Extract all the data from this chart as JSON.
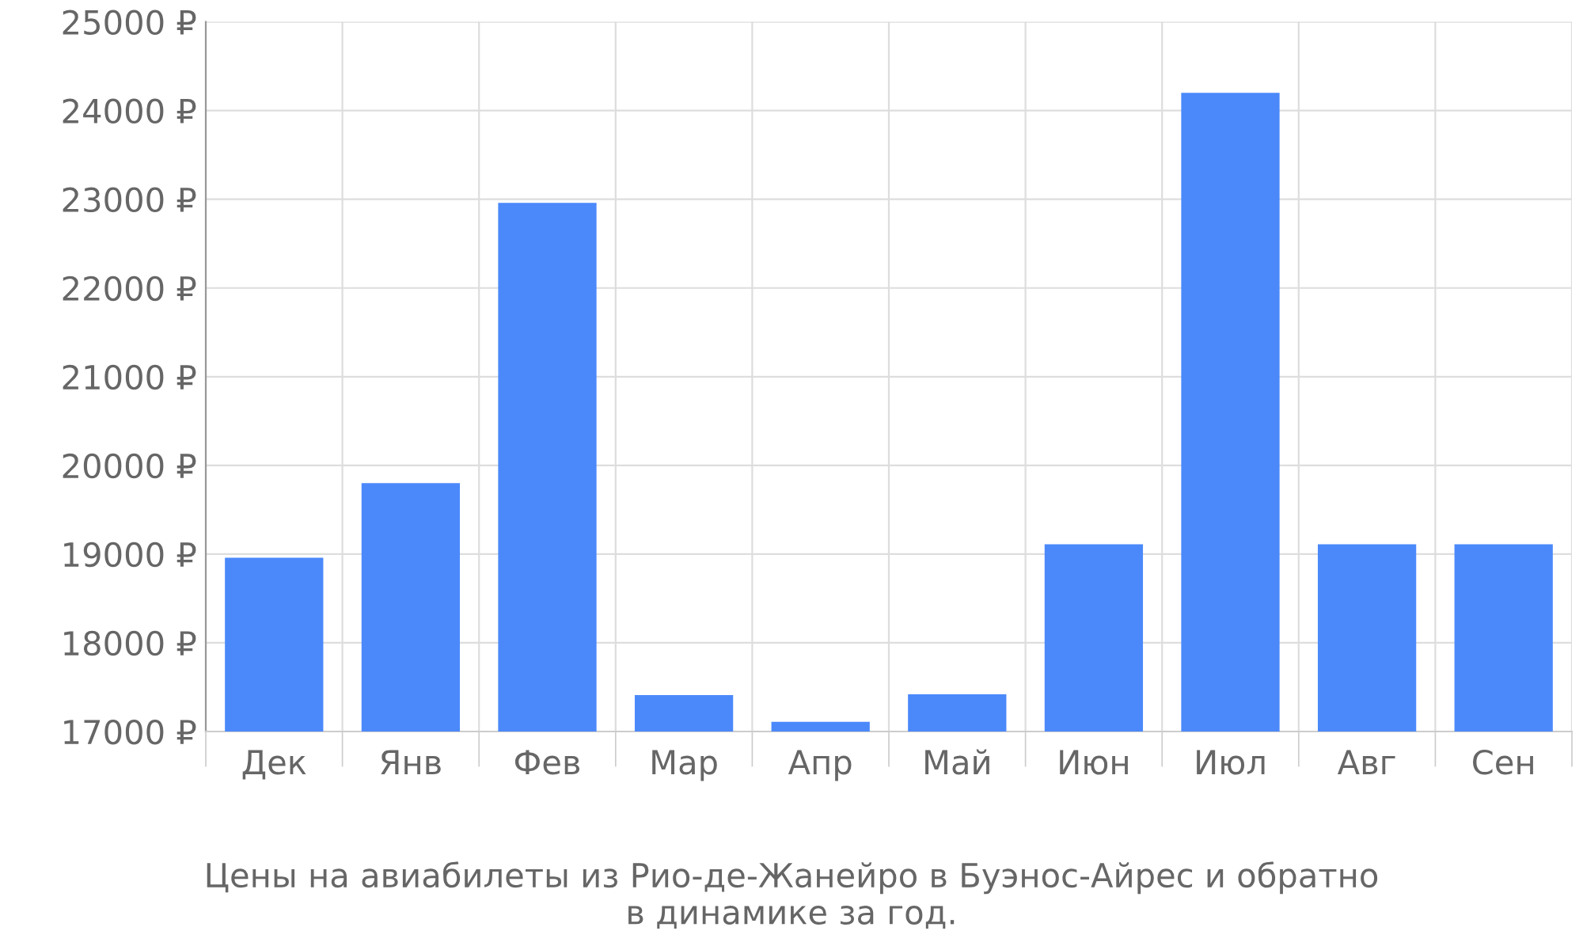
{
  "chart_data": {
    "type": "bar",
    "categories": [
      "Дек",
      "Янв",
      "Фев",
      "Мар",
      "Апр",
      "Май",
      "Июн",
      "Июл",
      "Авг",
      "Сен"
    ],
    "values": [
      18960,
      19800,
      22960,
      17410,
      17110,
      17420,
      19110,
      24200,
      19110,
      19110
    ],
    "color": "#4b89fb",
    "ylim": [
      17000,
      25000
    ],
    "yticks": [
      {
        "value": 17000,
        "label": "17000 ₽"
      },
      {
        "value": 18000,
        "label": "18000 ₽"
      },
      {
        "value": 19000,
        "label": "19000 ₽"
      },
      {
        "value": 20000,
        "label": "20000 ₽"
      },
      {
        "value": 21000,
        "label": "21000 ₽"
      },
      {
        "value": 22000,
        "label": "22000 ₽"
      },
      {
        "value": 23000,
        "label": "23000 ₽"
      },
      {
        "value": 24000,
        "label": "24000 ₽"
      },
      {
        "value": 25000,
        "label": "25000 ₽"
      }
    ],
    "grid": true,
    "annotations": [
      "Цены на авиабилеты из Рио-де-Жанейро в Буэнос-Айрес и обратно\nв динамике за год."
    ]
  }
}
